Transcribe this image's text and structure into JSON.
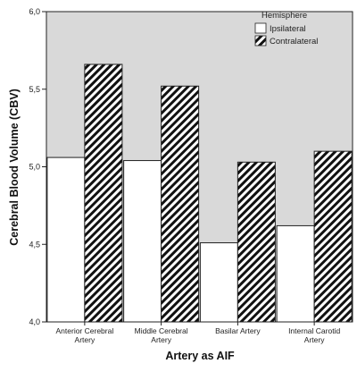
{
  "chart_data": {
    "type": "bar",
    "categories": [
      [
        "Anterior Cerebral",
        "Artery"
      ],
      [
        "Middle Cerebral",
        "Artery"
      ],
      [
        "Basilar Artery"
      ],
      [
        "Internal Carotid",
        "Artery"
      ]
    ],
    "series": [
      {
        "name": "Ipsilateral",
        "values": [
          5.06,
          5.04,
          4.51,
          4.62
        ],
        "fill": "#ffffff"
      },
      {
        "name": "Contralateral",
        "values": [
          5.66,
          5.52,
          5.03,
          5.1
        ],
        "fill": "hatch"
      }
    ],
    "ylim": [
      4.0,
      6.0
    ],
    "yticks": [
      "4,0",
      "4,5",
      "5,0",
      "5,5",
      "6,0"
    ],
    "xlabel": "Artery as AIF",
    "ylabel": "Cerebral Blood Volume (CBV)",
    "legend_title": "Hemisphere",
    "legend_position": "top-right",
    "background_color": "#d9d9d9",
    "grid": false
  }
}
